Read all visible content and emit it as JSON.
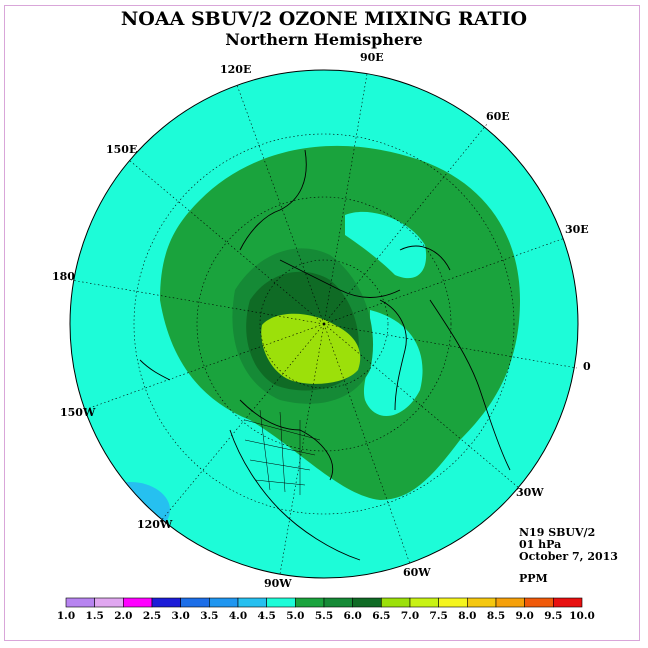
{
  "title": "NOAA SBUV/2 OZONE MIXING RATIO",
  "subtitle": "Northern Hemisphere",
  "meridian_labels": [
    "90E",
    "60E",
    "30E",
    "0",
    "30W",
    "60W",
    "90W",
    "120W",
    "150W",
    "180",
    "150E",
    "120E"
  ],
  "info": {
    "instrument": "N19 SBUV/2",
    "pressure": "01 hPa",
    "date": "October 7, 2013",
    "unit": "PPM"
  },
  "colorbar": {
    "ticks": [
      "1.0",
      "1.5",
      "2.0",
      "2.5",
      "3.0",
      "3.5",
      "4.0",
      "4.5",
      "5.0",
      "5.5",
      "6.0",
      "6.5",
      "7.0",
      "7.5",
      "8.0",
      "8.5",
      "9.0",
      "9.5",
      "10.0"
    ],
    "colors": [
      "#b784f0",
      "#e0a7f0",
      "#ff00ff",
      "#1c1cd8",
      "#1c6ee8",
      "#1f96f0",
      "#26c0f0",
      "#1dfcd8",
      "#1aa33d",
      "#158a36",
      "#0f6b25",
      "#9ce00a",
      "#c8f214",
      "#f5f51e",
      "#f5c810",
      "#f5a00a",
      "#f05a0a",
      "#e81010",
      "#8b5a3c"
    ]
  },
  "colors": {
    "background_level": "#1dfcd8",
    "level_5_0": "#1aa33d",
    "level_5_5": "#158a36",
    "level_6_0": "#0f6b25",
    "level_6_5": "#9ce00a",
    "low_level": "#26c0f0",
    "frame": "#d9a6d9"
  }
}
